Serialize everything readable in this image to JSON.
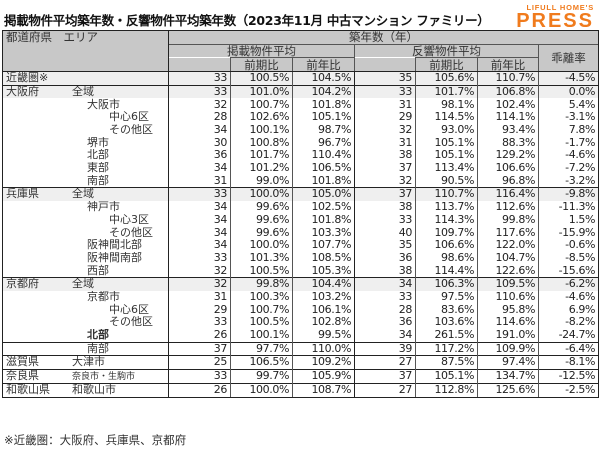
{
  "title": "掲載物件平均築年数・反響物件平均築年数（2023年11月 中古マンション ファミリー）",
  "logo": {
    "top": "LIFULL HOME'S",
    "main": "PRESS",
    "color": "#f07b1d"
  },
  "header": {
    "left": "都道府県　エリア",
    "group": "築年数（年）",
    "listed": "掲載物件平均",
    "response": "反響物件平均",
    "deviation": "乖離率",
    "qoq": "前期比",
    "yoy": "前年比"
  },
  "rows": [
    {
      "pref": "近畿圏※",
      "area": "",
      "l": "33",
      "lq": "100.5%",
      "ly": "104.5%",
      "r": "35",
      "rq": "105.6%",
      "ry": "110.7%",
      "d": "-4.5%"
    },
    {
      "pref": "大阪府",
      "area": "全域",
      "l": "33",
      "lq": "101.0%",
      "ly": "104.2%",
      "r": "33",
      "rq": "101.7%",
      "ry": "106.8%",
      "d": "0.0%"
    },
    {
      "pref": "",
      "area": "大阪市",
      "l": "32",
      "lq": "100.7%",
      "ly": "101.8%",
      "r": "31",
      "rq": "98.1%",
      "ry": "102.4%",
      "d": "5.4%"
    },
    {
      "pref": "",
      "area": "中心6区",
      "l": "28",
      "lq": "102.6%",
      "ly": "105.1%",
      "r": "29",
      "rq": "114.5%",
      "ry": "114.1%",
      "d": "-3.1%"
    },
    {
      "pref": "",
      "area": "その他区",
      "l": "34",
      "lq": "100.1%",
      "ly": "98.7%",
      "r": "32",
      "rq": "93.0%",
      "ry": "93.4%",
      "d": "7.8%"
    },
    {
      "pref": "",
      "area": "堺市",
      "l": "30",
      "lq": "100.8%",
      "ly": "96.7%",
      "r": "31",
      "rq": "105.1%",
      "ry": "88.3%",
      "d": "-1.7%"
    },
    {
      "pref": "",
      "area": "北部",
      "l": "36",
      "lq": "101.7%",
      "ly": "110.4%",
      "r": "38",
      "rq": "105.1%",
      "ry": "129.2%",
      "d": "-4.6%"
    },
    {
      "pref": "",
      "area": "東部",
      "l": "34",
      "lq": "101.2%",
      "ly": "106.5%",
      "r": "37",
      "rq": "113.4%",
      "ry": "106.6%",
      "d": "-7.2%"
    },
    {
      "pref": "",
      "area": "南部",
      "l": "31",
      "lq": "99.0%",
      "ly": "101.8%",
      "r": "32",
      "rq": "90.5%",
      "ry": "96.8%",
      "d": "-3.2%"
    },
    {
      "pref": "兵庫県",
      "area": "全域",
      "l": "33",
      "lq": "100.0%",
      "ly": "105.0%",
      "r": "37",
      "rq": "110.7%",
      "ry": "116.4%",
      "d": "-9.8%"
    },
    {
      "pref": "",
      "area": "神戸市",
      "l": "34",
      "lq": "99.6%",
      "ly": "102.5%",
      "r": "38",
      "rq": "113.7%",
      "ry": "112.6%",
      "d": "-11.3%"
    },
    {
      "pref": "",
      "area": "中心3区",
      "l": "34",
      "lq": "99.6%",
      "ly": "101.8%",
      "r": "33",
      "rq": "114.3%",
      "ry": "99.8%",
      "d": "1.5%"
    },
    {
      "pref": "",
      "area": "その他区",
      "l": "34",
      "lq": "99.6%",
      "ly": "103.3%",
      "r": "40",
      "rq": "109.7%",
      "ry": "117.6%",
      "d": "-15.9%"
    },
    {
      "pref": "",
      "area": "阪神間北部",
      "l": "34",
      "lq": "100.0%",
      "ly": "107.7%",
      "r": "35",
      "rq": "106.6%",
      "ry": "122.0%",
      "d": "-0.6%"
    },
    {
      "pref": "",
      "area": "阪神間南部",
      "l": "33",
      "lq": "101.3%",
      "ly": "108.5%",
      "r": "36",
      "rq": "98.6%",
      "ry": "104.7%",
      "d": "-8.5%"
    },
    {
      "pref": "",
      "area": "西部",
      "l": "32",
      "lq": "100.5%",
      "ly": "105.3%",
      "r": "38",
      "rq": "114.4%",
      "ry": "122.6%",
      "d": "-15.6%"
    },
    {
      "pref": "京都府",
      "area": "全域",
      "l": "32",
      "lq": "99.8%",
      "ly": "104.4%",
      "r": "34",
      "rq": "106.3%",
      "ry": "109.5%",
      "d": "-6.2%"
    },
    {
      "pref": "",
      "area": "京都市",
      "l": "31",
      "lq": "100.3%",
      "ly": "103.2%",
      "r": "33",
      "rq": "97.5%",
      "ry": "110.6%",
      "d": "-4.6%"
    },
    {
      "pref": "",
      "area": "中心6区",
      "l": "29",
      "lq": "100.7%",
      "ly": "106.1%",
      "r": "28",
      "rq": "83.6%",
      "ry": "95.8%",
      "d": "6.9%"
    },
    {
      "pref": "",
      "area": "その他区",
      "l": "33",
      "lq": "100.5%",
      "ly": "102.8%",
      "r": "36",
      "rq": "103.6%",
      "ry": "114.6%",
      "d": "-8.2%"
    },
    {
      "pref": "",
      "area": "北部",
      "l": "26",
      "lq": "100.1%",
      "ly": "99.5%",
      "r": "34",
      "rq": "261.5%",
      "ry": "191.0%",
      "d": "-24.7%"
    },
    {
      "pref": "",
      "area": "南部",
      "l": "37",
      "lq": "97.7%",
      "ly": "110.0%",
      "r": "39",
      "rq": "117.2%",
      "ry": "109.9%",
      "d": "-6.4%"
    },
    {
      "pref": "滋賀県",
      "area": "大津市",
      "l": "25",
      "lq": "106.5%",
      "ly": "109.2%",
      "r": "27",
      "rq": "87.5%",
      "ry": "97.4%",
      "d": "-8.1%"
    },
    {
      "pref": "奈良県",
      "area": "奈良市・生駒市",
      "l": "33",
      "lq": "99.7%",
      "ly": "105.9%",
      "r": "37",
      "rq": "105.1%",
      "ry": "134.7%",
      "d": "-12.5%"
    },
    {
      "pref": "和歌山県",
      "area": "和歌山市",
      "l": "26",
      "lq": "100.0%",
      "ly": "108.7%",
      "r": "27",
      "rq": "112.8%",
      "ry": "125.6%",
      "d": "-2.5%"
    }
  ],
  "footnote": "※近畿圏：大阪府、兵庫県、京都府"
}
